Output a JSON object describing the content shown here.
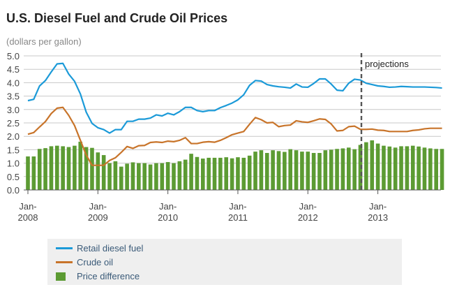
{
  "chart_data": {
    "type": "bar+line",
    "title": "U.S. Diesel Fuel and Crude Oil Prices",
    "ylabel": "(dollars per gallon)",
    "xlabel": "",
    "ylim": [
      0,
      5
    ],
    "yticks": [
      "0.0",
      "0.5",
      "1.0",
      "1.5",
      "2.0",
      "2.5",
      "3.0",
      "3.5",
      "4.0",
      "4.5",
      "5.0"
    ],
    "xticks": [
      {
        "label": "Jan-",
        "year": "2008"
      },
      {
        "label": "Jan-",
        "year": "2009"
      },
      {
        "label": "Jan-",
        "year": "2010"
      },
      {
        "label": "Jan-",
        "year": "2011"
      },
      {
        "label": "Jan-",
        "year": "2012"
      },
      {
        "label": "Jan-",
        "year": "2013"
      }
    ],
    "x_start": "Jan-2008",
    "frequency": "monthly",
    "grid": true,
    "annotation": {
      "label": "projections",
      "at": "Nov-2012"
    },
    "legend_position": "bottom",
    "series": [
      {
        "name": "Retail diesel fuel",
        "type": "line",
        "color": "#1b9ad8",
        "values": [
          3.33,
          3.38,
          3.88,
          4.08,
          4.4,
          4.7,
          4.72,
          4.32,
          4.05,
          3.58,
          2.9,
          2.48,
          2.32,
          2.25,
          2.12,
          2.25,
          2.25,
          2.56,
          2.56,
          2.64,
          2.64,
          2.68,
          2.8,
          2.76,
          2.86,
          2.8,
          2.92,
          3.08,
          3.08,
          2.96,
          2.92,
          2.96,
          2.96,
          3.07,
          3.15,
          3.24,
          3.36,
          3.55,
          3.9,
          4.08,
          4.06,
          3.93,
          3.88,
          3.85,
          3.83,
          3.8,
          3.95,
          3.84,
          3.83,
          3.97,
          4.14,
          4.14,
          3.95,
          3.72,
          3.7,
          3.98,
          4.13,
          4.1,
          3.98,
          3.93,
          3.88,
          3.86,
          3.83,
          3.84,
          3.86,
          3.85,
          3.84,
          3.84,
          3.84,
          3.83,
          3.82,
          3.8
        ]
      },
      {
        "name": "Crude oil",
        "type": "line",
        "color": "#c8742a",
        "values": [
          2.08,
          2.14,
          2.35,
          2.55,
          2.85,
          3.05,
          3.08,
          2.78,
          2.4,
          1.85,
          1.3,
          0.92,
          0.92,
          0.92,
          1.1,
          1.2,
          1.4,
          1.62,
          1.55,
          1.65,
          1.66,
          1.77,
          1.79,
          1.77,
          1.82,
          1.8,
          1.85,
          1.95,
          1.73,
          1.73,
          1.78,
          1.8,
          1.78,
          1.85,
          1.95,
          2.06,
          2.12,
          2.18,
          2.45,
          2.7,
          2.62,
          2.5,
          2.52,
          2.36,
          2.4,
          2.42,
          2.58,
          2.54,
          2.52,
          2.58,
          2.65,
          2.63,
          2.46,
          2.2,
          2.22,
          2.36,
          2.38,
          2.26,
          2.26,
          2.27,
          2.23,
          2.22,
          2.18,
          2.18,
          2.18,
          2.18,
          2.22,
          2.24,
          2.28,
          2.3,
          2.3,
          2.3
        ]
      },
      {
        "name": "Price difference",
        "type": "bar",
        "color": "#5c9b33",
        "values": [
          1.25,
          1.25,
          1.53,
          1.56,
          1.63,
          1.65,
          1.63,
          1.6,
          1.65,
          1.8,
          1.6,
          1.57,
          1.4,
          1.3,
          1.0,
          1.07,
          0.87,
          0.98,
          1.03,
          1.0,
          1.0,
          0.95,
          1.0,
          1.0,
          1.04,
          1.0,
          1.07,
          1.13,
          1.35,
          1.23,
          1.17,
          1.2,
          1.2,
          1.2,
          1.22,
          1.18,
          1.22,
          1.2,
          1.28,
          1.43,
          1.48,
          1.38,
          1.48,
          1.45,
          1.42,
          1.52,
          1.48,
          1.43,
          1.43,
          1.38,
          1.38,
          1.48,
          1.5,
          1.53,
          1.55,
          1.58,
          1.52,
          1.68,
          1.78,
          1.85,
          1.73,
          1.65,
          1.62,
          1.58,
          1.63,
          1.63,
          1.65,
          1.62,
          1.58,
          1.55,
          1.53,
          1.53
        ]
      }
    ]
  }
}
